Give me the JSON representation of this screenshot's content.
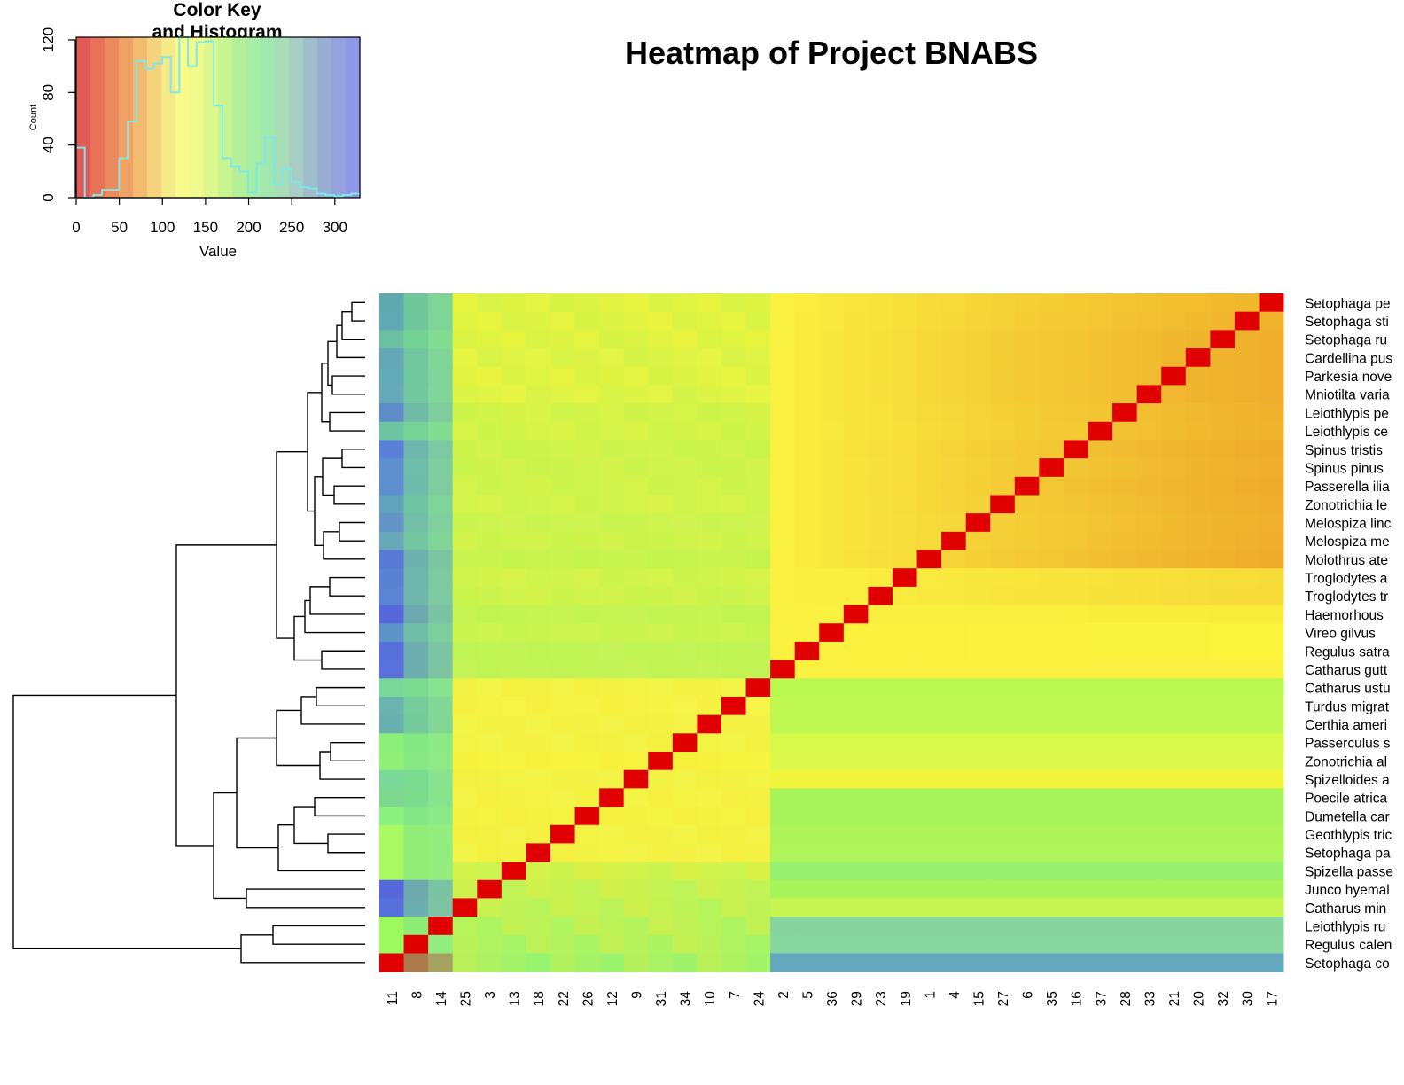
{
  "page": {
    "title": "Heatmap of Project BNABS"
  },
  "color_key": {
    "title_line1": "Color Key",
    "title_line2": "and Histogram",
    "xlabel": "Value",
    "ylabel": "Count",
    "x_ticks": [
      0,
      50,
      100,
      150,
      200,
      250,
      300
    ],
    "y_ticks": [
      0,
      40,
      80,
      120
    ],
    "xlim": [
      0,
      329
    ],
    "ylim": [
      0,
      122
    ],
    "histogram_counts": [
      38,
      0,
      2,
      6,
      6,
      30,
      58,
      104,
      98,
      102,
      107,
      80,
      122,
      100,
      118,
      119,
      70,
      30,
      24,
      20,
      4,
      26,
      46,
      10,
      22,
      12,
      8,
      7,
      3,
      2,
      1,
      2,
      3
    ],
    "palette": [
      "#E25A58",
      "#E87158",
      "#EC8A5E",
      "#F0A266",
      "#F3BB70",
      "#F5D37C",
      "#F5EA88",
      "#F8FA8A",
      "#EFFA8A",
      "#DCF88C",
      "#C8F592",
      "#B4F09A",
      "#A6EEA4",
      "#A0E8B0",
      "#A8DDB8",
      "#A8CDC4",
      "#A0BDCD",
      "#98AED5",
      "#94A2DE",
      "#8E98E6"
    ],
    "line_color": "#7EE8E8"
  },
  "chart_data": {
    "type": "heatmap",
    "title": "Heatmap of Project BNABS",
    "column_labels": [
      "11",
      "8",
      "14",
      "25",
      "3",
      "13",
      "18",
      "22",
      "26",
      "12",
      "9",
      "31",
      "34",
      "10",
      "7",
      "24",
      "2",
      "5",
      "36",
      "29",
      "23",
      "19",
      "1",
      "4",
      "15",
      "27",
      "6",
      "35",
      "16",
      "37",
      "28",
      "33",
      "21",
      "20",
      "32",
      "30",
      "17"
    ],
    "row_labels": [
      "Setophaga pe",
      "Setophaga sti",
      "Setophaga ru",
      "Cardellina pus",
      "Parkesia nove",
      "Mniotilta varia",
      "Leiothlypis pe",
      "Leiothlypis ce",
      "Spinus tristis",
      "Spinus pinus",
      "Passerella ilia",
      "Zonotrichia le",
      "Melospiza linc",
      "Melospiza me",
      "Molothrus ate",
      "Troglodytes a",
      "Troglodytes tr",
      "Haemorhous",
      "Vireo gilvus",
      "Regulus satra",
      "Catharus gutt",
      "Catharus ustu",
      "Turdus migrat",
      "Certhia ameri",
      "Passerculus s",
      "Zonotrichia al",
      "Spizelloides a",
      "Poecile atrica",
      "Dumetella car",
      "Geothlypis tric",
      "Setophaga pa",
      "Spizella passe",
      "Junco hyemal",
      "Catharus min",
      "Leiothlypis ru",
      "Regulus calen",
      "Setophaga co"
    ],
    "values_note": "",
    "row_dendrogram": true,
    "color_scale": "red-yellow-green-blue",
    "value_range": [
      0,
      329
    ]
  }
}
